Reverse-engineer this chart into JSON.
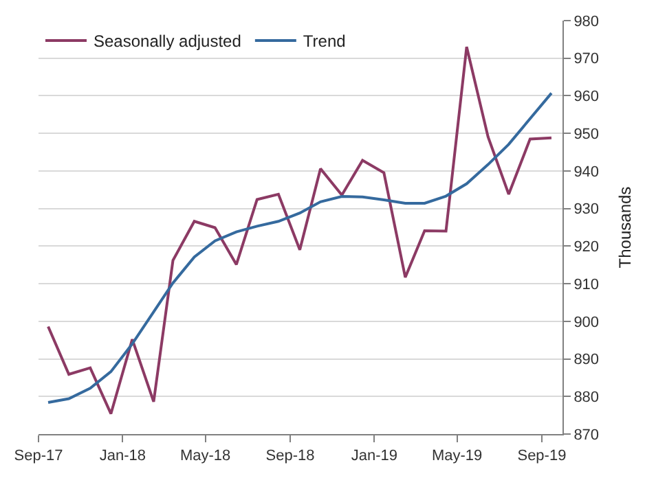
{
  "chart_data": {
    "type": "line",
    "ylabel": "Thousands",
    "x": [
      "2017-09-15",
      "2017-10-15",
      "2017-11-15",
      "2017-12-15",
      "2018-01-15",
      "2018-02-15",
      "2018-03-15",
      "2018-04-15",
      "2018-05-15",
      "2018-06-15",
      "2018-07-15",
      "2018-08-15",
      "2018-09-15",
      "2018-10-15",
      "2018-11-15",
      "2018-12-15",
      "2019-01-15",
      "2019-02-15",
      "2019-03-15",
      "2019-04-15",
      "2019-05-15",
      "2019-06-15",
      "2019-07-15",
      "2019-08-15",
      "2019-09-15"
    ],
    "series": [
      {
        "name": "Seasonally adjusted",
        "color": "#8c3a64",
        "values": [
          898.6,
          885.9,
          887.6,
          875.4,
          895.2,
          878.6,
          916.2,
          926.6,
          924.9,
          915.1,
          932.4,
          933.8,
          919.0,
          940.6,
          933.6,
          942.8,
          939.5,
          911.7,
          924.1,
          924.0,
          973.0,
          949.1,
          933.8,
          948.5,
          948.8
        ]
      },
      {
        "name": "Trend",
        "color": "#356a9e",
        "values": [
          878.4,
          879.4,
          882.2,
          886.6,
          894.0,
          902.5,
          910.2,
          917.1,
          921.4,
          923.8,
          925.3,
          926.6,
          928.8,
          931.8,
          933.2,
          933.1,
          932.3,
          931.4,
          931.4,
          933.3,
          936.6,
          941.7,
          947.1,
          953.9,
          960.7
        ]
      }
    ],
    "xlim": [
      "2017-09-01",
      "2019-10-01"
    ],
    "xticks": [
      {
        "value": "2017-09-01",
        "label": "Sep-17"
      },
      {
        "value": "2018-01-01",
        "label": "Jan-18"
      },
      {
        "value": "2018-05-01",
        "label": "May-18"
      },
      {
        "value": "2018-09-01",
        "label": "Sep-18"
      },
      {
        "value": "2019-01-01",
        "label": "Jan-19"
      },
      {
        "value": "2019-05-01",
        "label": "May-19"
      },
      {
        "value": "2019-09-01",
        "label": "Sep-19"
      }
    ],
    "ylim": [
      870,
      980
    ],
    "yticks": [
      870,
      880,
      890,
      900,
      910,
      920,
      930,
      940,
      950,
      960,
      970,
      980
    ],
    "grid": "y",
    "legend": "top left",
    "marker": "none",
    "line_style": "solid"
  }
}
